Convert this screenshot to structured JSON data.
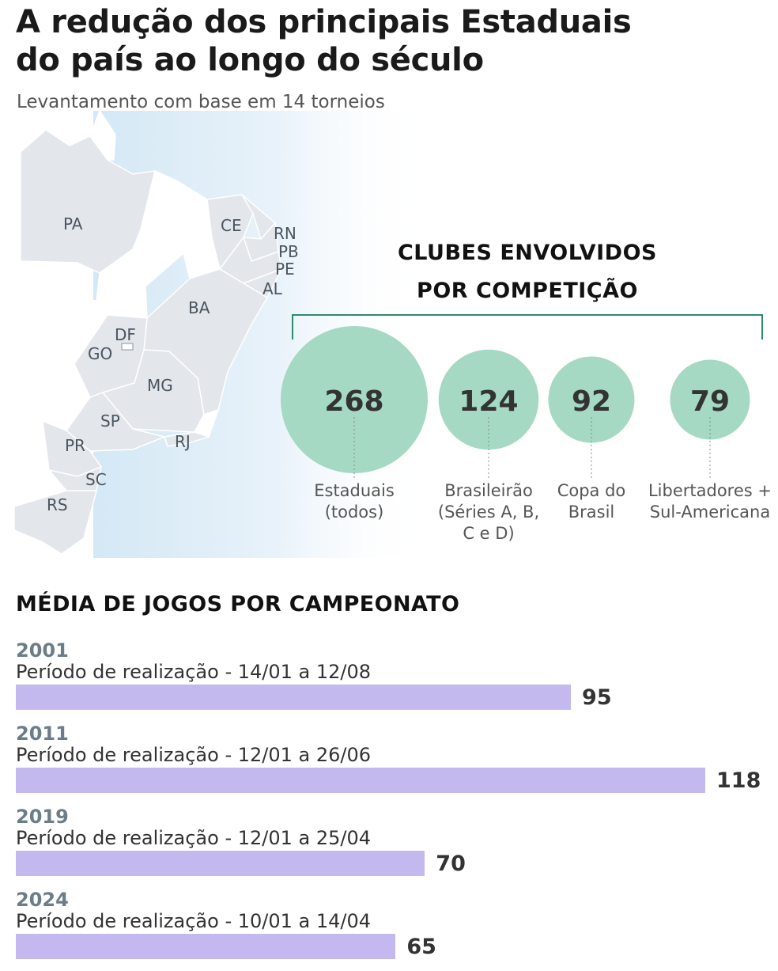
{
  "title_line1": "A redução dos principais Estaduais",
  "title_line2": "do país ao longo do século",
  "subtitle": "Levantamento com base em 14 torneios",
  "map": {
    "states": [
      "PA",
      "CE",
      "RN",
      "PB",
      "PE",
      "AL",
      "BA",
      "DF",
      "GO",
      "MG",
      "SP",
      "RJ",
      "PR",
      "SC",
      "RS"
    ]
  },
  "clubes": {
    "title_line1": "CLUBES ENVOLVIDOS",
    "title_line2": "POR COMPETIÇÃO"
  },
  "media": {
    "title": "MÉDIA DE JOGOS POR CAMPEONATO"
  },
  "colors": {
    "bubble": "#a5d9c4",
    "bar": "#c3b9ef",
    "bracket": "#2e8b6a",
    "year": "#6b7d86"
  },
  "chart_data": [
    {
      "type": "scatter",
      "title": "CLUBES ENVOLVIDOS POR COMPETIÇÃO",
      "categories": [
        [
          "Estaduais",
          "(todos)"
        ],
        [
          "Brasileirão",
          "(Séries A, B,",
          "C e D)"
        ],
        [
          "Copa do",
          "Brasil"
        ],
        [
          "Libertadores +",
          "Sul-Americana"
        ]
      ],
      "values": [
        268,
        124,
        92,
        79
      ]
    },
    {
      "type": "bar",
      "title": "MÉDIA DE JOGOS POR CAMPEONATO",
      "categories": [
        "2001",
        "2011",
        "2019",
        "2024"
      ],
      "periods": [
        "Período de realização - 14/01 a 12/08",
        "Período de realização - 12/01 a 26/06",
        "Período de realização - 12/01 a 25/04",
        "Período de realização - 10/01 a 14/04"
      ],
      "values": [
        95,
        118,
        70,
        65
      ]
    }
  ]
}
